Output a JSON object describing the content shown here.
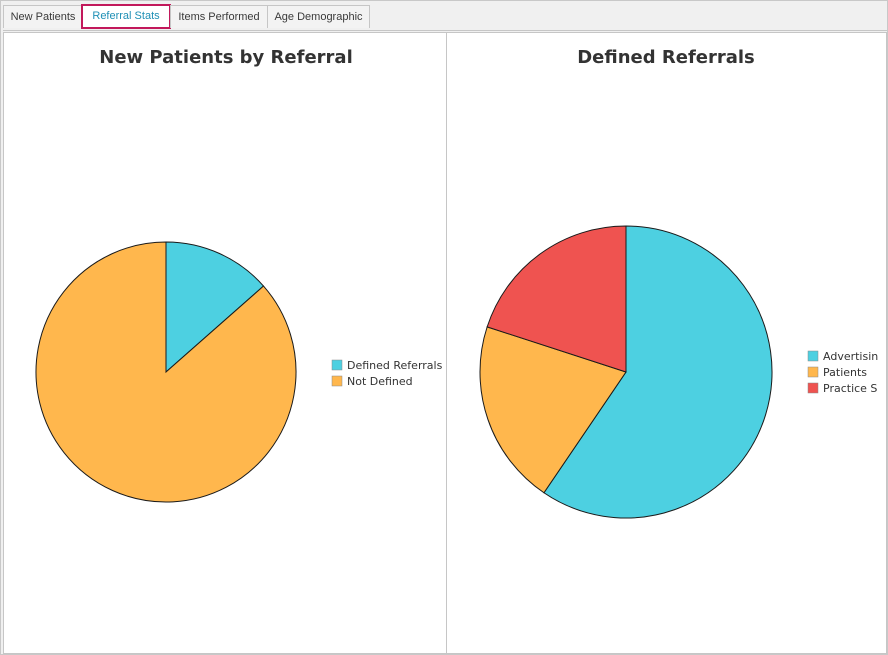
{
  "tabs": [
    {
      "label": "New Patients",
      "active": false
    },
    {
      "label": "Referral Stats",
      "active": true
    },
    {
      "label": "Items Performed",
      "active": false
    },
    {
      "label": "Age Demographic",
      "active": false
    }
  ],
  "chart_data": [
    {
      "type": "pie",
      "title": "New Patients by Referral",
      "categories": [
        "Defined Referrals",
        "Not Defined"
      ],
      "values": [
        13.5,
        86.5
      ],
      "colors": [
        "#4dd0e1",
        "#ffb74d"
      ],
      "legend_position": "right"
    },
    {
      "type": "pie",
      "title": "Defined Referrals",
      "categories": [
        "Advertisin",
        "Patients",
        "Practice S"
      ],
      "values": [
        59.5,
        20.5,
        20.0
      ],
      "colors": [
        "#4dd0e1",
        "#ffb74d",
        "#ef5350"
      ],
      "legend_position": "right"
    }
  ]
}
